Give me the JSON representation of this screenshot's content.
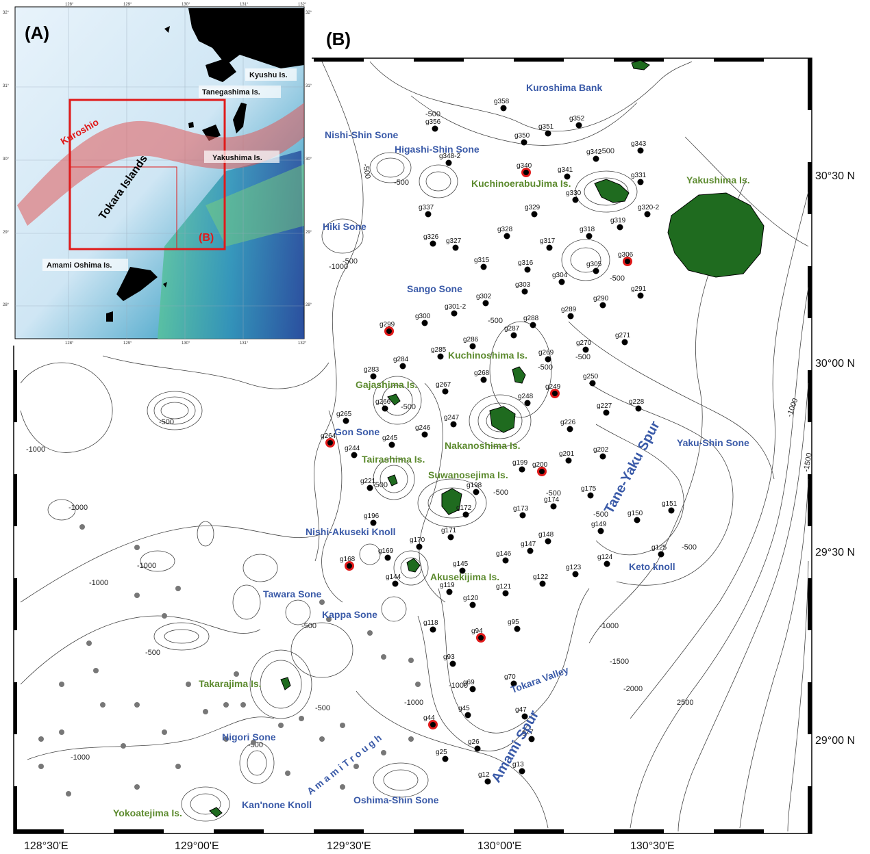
{
  "panels": {
    "inset_label": "(A)",
    "main_label": "(B)"
  },
  "inset": {
    "lon_ticks": [
      "128°",
      "129°",
      "130°",
      "131°",
      "132°"
    ],
    "lat_ticks": [
      "32°",
      "31°",
      "30°",
      "29°",
      "28°"
    ],
    "labels": {
      "kyushu": "Kyushu Is.",
      "tanegashima": "Tanegashima Is.",
      "yakushima": "Yakushima Is.",
      "tokara": "Tokara Islands",
      "amami": "Amami Oshima Is.",
      "kuroshio": "Kuroshio",
      "box_b": "(B)"
    }
  },
  "axes": {
    "lon": [
      "128°30'E",
      "129°00'E",
      "129°30'E",
      "130°00'E",
      "130°30'E"
    ],
    "lat": [
      "30°30 N",
      "30°00 N",
      "29°30 N",
      "29°00 N"
    ]
  },
  "features_blue": [
    {
      "id": "kuroshima-bank",
      "text": "Kuroshima Bank"
    },
    {
      "id": "nishi-shin-sone",
      "text": "Nishi-Shin Sone"
    },
    {
      "id": "higashi-shin-sone",
      "text": "Higashi-Shin Sone"
    },
    {
      "id": "hiki-sone",
      "text": "Hiki Sone"
    },
    {
      "id": "sango-sone",
      "text": "Sango Sone"
    },
    {
      "id": "gon-sone",
      "text": "Gon Sone"
    },
    {
      "id": "nishi-akuseki-knoll",
      "text": "Nishi-Akuseki Knoll"
    },
    {
      "id": "tawara-sone",
      "text": "Tawara Sone"
    },
    {
      "id": "kappa-sone",
      "text": "Kappa Sone"
    },
    {
      "id": "nigori-sone",
      "text": "Nigori Sone"
    },
    {
      "id": "kannone-knoll",
      "text": "Kan'none Knoll"
    },
    {
      "id": "oshima-shin-sone",
      "text": "Oshima-Shin Sone"
    },
    {
      "id": "yaku-shin-sone",
      "text": "Yaku-Shin Sone"
    },
    {
      "id": "keto-knoll",
      "text": "Keto knoll"
    },
    {
      "id": "tokara-valley",
      "text": "Tokara Valley"
    },
    {
      "id": "amami-trough",
      "text": "A m a m i   T r o u g h"
    },
    {
      "id": "amami-spur",
      "text": "Amami Spur"
    },
    {
      "id": "tane-yaku-spur",
      "text": "Tane-Yaku  Spur"
    }
  ],
  "features_green": [
    {
      "id": "kuchinoerabujima",
      "text": "KuchinoerabuJima Is."
    },
    {
      "id": "yakushima",
      "text": "Yakushima Is."
    },
    {
      "id": "kuchinoshima",
      "text": "Kuchinoshima Is."
    },
    {
      "id": "gajashima",
      "text": "Gajashima Is."
    },
    {
      "id": "nakanoshima",
      "text": "Nakanoshima Is."
    },
    {
      "id": "tairashima",
      "text": "Tairashima Is."
    },
    {
      "id": "suwanosejima",
      "text": "Suwanosejima Is."
    },
    {
      "id": "akusekijima",
      "text": "Akusekijima Is."
    },
    {
      "id": "takarajima",
      "text": "Takarajima Is."
    },
    {
      "id": "yokoatejima",
      "text": "Yokoatejima Is."
    }
  ],
  "stations": [
    {
      "id": "g358",
      "label": "g358",
      "red": false
    },
    {
      "id": "g352",
      "label": "g352",
      "red": false
    },
    {
      "id": "g356",
      "label": "g356",
      "red": false
    },
    {
      "id": "g351",
      "label": "g351",
      "red": false
    },
    {
      "id": "g350",
      "label": "g350",
      "red": false
    },
    {
      "id": "g343",
      "label": "g343",
      "red": false
    },
    {
      "id": "g342",
      "label": "g342",
      "red": false
    },
    {
      "id": "g348-2",
      "label": "g348-2",
      "red": false
    },
    {
      "id": "g340",
      "label": "g340",
      "red": true
    },
    {
      "id": "g341",
      "label": "g341",
      "red": false
    },
    {
      "id": "g331",
      "label": "g331",
      "red": false
    },
    {
      "id": "g330",
      "label": "g330",
      "red": false
    },
    {
      "id": "g337",
      "label": "g337",
      "red": false
    },
    {
      "id": "g329",
      "label": "g329",
      "red": false
    },
    {
      "id": "g320-2",
      "label": "g320-2",
      "red": false
    },
    {
      "id": "g319",
      "label": "g319",
      "red": false
    },
    {
      "id": "g328",
      "label": "g328",
      "red": false
    },
    {
      "id": "g318",
      "label": "g318",
      "red": false
    },
    {
      "id": "g326",
      "label": "g326",
      "red": false
    },
    {
      "id": "g327",
      "label": "g327",
      "red": false
    },
    {
      "id": "g317",
      "label": "g317",
      "red": false
    },
    {
      "id": "g306",
      "label": "g306",
      "red": true
    },
    {
      "id": "g315",
      "label": "g315",
      "red": false
    },
    {
      "id": "g316",
      "label": "g316",
      "red": false
    },
    {
      "id": "g305",
      "label": "g305",
      "red": false
    },
    {
      "id": "g304",
      "label": "g304",
      "red": false
    },
    {
      "id": "g303",
      "label": "g303",
      "red": false
    },
    {
      "id": "g291",
      "label": "g291",
      "red": false
    },
    {
      "id": "g302",
      "label": "g302",
      "red": false
    },
    {
      "id": "g290",
      "label": "g290",
      "red": false
    },
    {
      "id": "g301-2",
      "label": "g301-2",
      "red": false
    },
    {
      "id": "g289",
      "label": "g289",
      "red": false
    },
    {
      "id": "g300",
      "label": "g300",
      "red": false
    },
    {
      "id": "g288",
      "label": "g288",
      "red": false
    },
    {
      "id": "g299",
      "label": "g299",
      "red": true
    },
    {
      "id": "g287",
      "label": "g287",
      "red": false
    },
    {
      "id": "g271",
      "label": "g271",
      "red": false
    },
    {
      "id": "g286",
      "label": "g286",
      "red": false
    },
    {
      "id": "g270",
      "label": "g270",
      "red": false
    },
    {
      "id": "g285",
      "label": "g285",
      "red": false
    },
    {
      "id": "g269",
      "label": "g269",
      "red": false
    },
    {
      "id": "g284",
      "label": "g284",
      "red": false
    },
    {
      "id": "g283",
      "label": "g283",
      "red": false
    },
    {
      "id": "g268",
      "label": "g268",
      "red": false
    },
    {
      "id": "g250",
      "label": "g250",
      "red": false
    },
    {
      "id": "g249",
      "label": "g249",
      "red": true
    },
    {
      "id": "g267",
      "label": "g267",
      "red": false
    },
    {
      "id": "g248",
      "label": "g248",
      "red": false
    },
    {
      "id": "g227",
      "label": "g227",
      "red": false
    },
    {
      "id": "g228",
      "label": "g228",
      "red": false
    },
    {
      "id": "g266",
      "label": "g266",
      "red": false
    },
    {
      "id": "g247",
      "label": "g247",
      "red": false
    },
    {
      "id": "g265",
      "label": "g265",
      "red": false
    },
    {
      "id": "g226",
      "label": "g226",
      "red": false
    },
    {
      "id": "g264",
      "label": "g264",
      "red": true
    },
    {
      "id": "g246",
      "label": "g246",
      "red": false
    },
    {
      "id": "g245",
      "label": "g245",
      "red": false
    },
    {
      "id": "g244",
      "label": "g244",
      "red": false
    },
    {
      "id": "g202",
      "label": "g202",
      "red": false
    },
    {
      "id": "g201",
      "label": "g201",
      "red": false
    },
    {
      "id": "g199",
      "label": "g199",
      "red": false
    },
    {
      "id": "g200",
      "label": "g200",
      "red": true
    },
    {
      "id": "g221",
      "label": "g221",
      "red": false
    },
    {
      "id": "g198",
      "label": "g198",
      "red": false
    },
    {
      "id": "g175",
      "label": "g175",
      "red": false
    },
    {
      "id": "g174",
      "label": "g174",
      "red": false
    },
    {
      "id": "g172",
      "label": "g172",
      "red": false
    },
    {
      "id": "g173",
      "label": "g173",
      "red": false
    },
    {
      "id": "g151",
      "label": "g151",
      "red": false
    },
    {
      "id": "g150",
      "label": "g150",
      "red": false
    },
    {
      "id": "g196",
      "label": "g196",
      "red": false
    },
    {
      "id": "g149",
      "label": "g149",
      "red": false
    },
    {
      "id": "g171",
      "label": "g171",
      "red": false
    },
    {
      "id": "g148",
      "label": "g148",
      "red": false
    },
    {
      "id": "g147",
      "label": "g147",
      "red": false
    },
    {
      "id": "g125",
      "label": "g125",
      "red": false
    },
    {
      "id": "g170",
      "label": "g170",
      "red": false
    },
    {
      "id": "g146",
      "label": "g146",
      "red": false
    },
    {
      "id": "g169",
      "label": "g169",
      "red": false
    },
    {
      "id": "g124",
      "label": "g124",
      "red": false
    },
    {
      "id": "g168",
      "label": "g168",
      "red": true
    },
    {
      "id": "g145",
      "label": "g145",
      "red": false
    },
    {
      "id": "g123",
      "label": "g123",
      "red": false
    },
    {
      "id": "g144",
      "label": "g144",
      "red": false
    },
    {
      "id": "g122",
      "label": "g122",
      "red": false
    },
    {
      "id": "g119",
      "label": "g119",
      "red": false
    },
    {
      "id": "g121",
      "label": "g121",
      "red": false
    },
    {
      "id": "g120",
      "label": "g120",
      "red": false
    },
    {
      "id": "g118",
      "label": "g118",
      "red": false
    },
    {
      "id": "g95",
      "label": "g95",
      "red": false
    },
    {
      "id": "g94",
      "label": "g94",
      "red": true
    },
    {
      "id": "g93",
      "label": "g93",
      "red": false
    },
    {
      "id": "g70",
      "label": "g70",
      "red": false
    },
    {
      "id": "g69",
      "label": "g69",
      "red": false
    },
    {
      "id": "g45",
      "label": "g45",
      "red": false
    },
    {
      "id": "g47",
      "label": "g47",
      "red": false
    },
    {
      "id": "g44",
      "label": "g44",
      "red": true
    },
    {
      "id": "g27",
      "label": "g27",
      "red": false
    },
    {
      "id": "g26",
      "label": "g26",
      "red": false
    },
    {
      "id": "g25",
      "label": "g25",
      "red": false
    },
    {
      "id": "g13",
      "label": "g13",
      "red": false
    },
    {
      "id": "g12",
      "label": "g12",
      "red": false
    }
  ],
  "contour_labels": [
    "-500",
    "-1000",
    "-1500",
    "-2000",
    "2500"
  ]
}
